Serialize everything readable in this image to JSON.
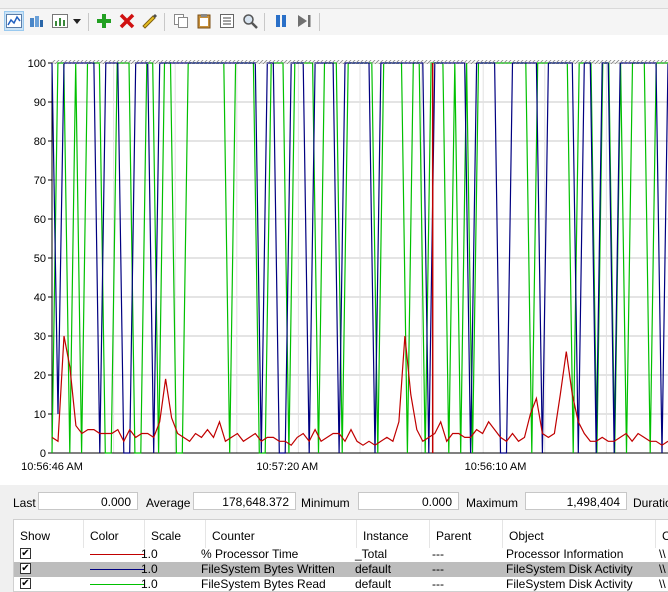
{
  "toolbar": {
    "buttons": [
      {
        "name": "view-graph-icon",
        "active": true
      },
      {
        "name": "view-histogram-icon"
      },
      {
        "name": "change-graph-type-icon"
      },
      {
        "name": "dropdown-arrow-icon"
      },
      {
        "name": "add-counter-icon"
      },
      {
        "name": "delete-counter-icon"
      },
      {
        "name": "highlight-icon"
      },
      {
        "name": "copy-properties-icon"
      },
      {
        "name": "paste-counter-list-icon"
      },
      {
        "name": "properties-icon"
      },
      {
        "name": "zoom-icon"
      },
      {
        "name": "freeze-display-icon"
      },
      {
        "name": "update-data-icon"
      }
    ]
  },
  "chart_data": {
    "type": "line",
    "ylim": [
      0,
      100
    ],
    "y_ticks": [
      "100",
      "90",
      "80",
      "70",
      "60",
      "50",
      "40",
      "30",
      "20",
      "10",
      "0"
    ],
    "x_labels": [
      "10:56:46 AM",
      "10:57:20 AM",
      "10:56:10 AM"
    ],
    "grid": true,
    "series": [
      {
        "name": "% Processor Time",
        "color": "#c00000",
        "values": [
          4,
          3,
          30,
          22,
          7,
          5,
          6,
          6,
          5,
          5,
          5,
          6,
          3,
          6,
          4,
          5,
          5,
          4,
          8,
          19,
          9,
          5,
          4,
          3,
          5,
          4,
          6,
          4,
          8,
          3,
          4,
          5,
          3,
          4,
          5,
          3,
          4,
          4,
          3,
          3,
          2,
          4,
          5,
          3,
          6,
          3,
          4,
          5,
          5,
          3,
          6,
          3,
          2,
          3,
          2,
          3,
          4,
          3,
          8,
          30,
          15,
          6,
          3,
          4,
          5,
          8,
          3,
          5,
          5,
          4,
          4,
          6,
          5,
          8,
          6,
          4,
          3,
          5,
          3,
          4,
          10,
          14,
          5,
          4,
          5,
          15,
          26,
          15,
          8,
          5,
          3,
          3,
          4,
          3,
          3,
          4,
          5,
          3,
          5,
          4,
          3,
          3,
          2,
          3
        ]
      },
      {
        "name": "FileSystem Bytes Written",
        "color": "#000080",
        "values": [
          100,
          10,
          100,
          100,
          100,
          100,
          100,
          100,
          0,
          100,
          100,
          100,
          0,
          0,
          100,
          100,
          100,
          0,
          100,
          100,
          100,
          100,
          100,
          100,
          100,
          100,
          100,
          100,
          100,
          100,
          100,
          100,
          100,
          100,
          100,
          0,
          100,
          100,
          0,
          0,
          100,
          100,
          100,
          0,
          100,
          100,
          100,
          100,
          0,
          100,
          100,
          100,
          100,
          100,
          0,
          100,
          100,
          100,
          100,
          100,
          100,
          100,
          100,
          0,
          100,
          100,
          100,
          100,
          100,
          100,
          0,
          100,
          100,
          100,
          100,
          0,
          0,
          100,
          100,
          100,
          100,
          100,
          0,
          100,
          100,
          100,
          100,
          100,
          0,
          100,
          100,
          0,
          100,
          100,
          0,
          100,
          100,
          100,
          100,
          100,
          100,
          100,
          0,
          100
        ]
      },
      {
        "name": "FileSystem Bytes Read",
        "color": "#00c000",
        "values": [
          0,
          100,
          100,
          0,
          100,
          0,
          100,
          100,
          100,
          0,
          0,
          100,
          100,
          100,
          0,
          0,
          100,
          100,
          0,
          100,
          100,
          0,
          0,
          100,
          100,
          100,
          100,
          100,
          100,
          100,
          0,
          100,
          100,
          100,
          100,
          0,
          0,
          100,
          100,
          100,
          0,
          100,
          100,
          100,
          100,
          0,
          100,
          100,
          100,
          0,
          100,
          100,
          100,
          100,
          100,
          0,
          100,
          100,
          100,
          100,
          0,
          100,
          100,
          0,
          100,
          100,
          100,
          0,
          100,
          0,
          100,
          0,
          100,
          100,
          100,
          100,
          100,
          100,
          100,
          100,
          100,
          0,
          100,
          100,
          100,
          100,
          100,
          100,
          0,
          100,
          100,
          100,
          0,
          100,
          100,
          0,
          100,
          0,
          100,
          100,
          100,
          0,
          100,
          100,
          100
        ]
      }
    ]
  },
  "stats": {
    "last_label": "Last",
    "last_value": "0.000",
    "average_label": "Average",
    "average_value": "178,648.372",
    "minimum_label": "Minimum",
    "minimum_value": "0.000",
    "maximum_label": "Maximum",
    "maximum_value": "1,498,404",
    "duration_label": "Duratio"
  },
  "legend": {
    "headers": [
      "Show",
      "Color",
      "Scale",
      "Counter",
      "Instance",
      "Parent",
      "Object",
      "C"
    ],
    "rows": [
      {
        "checked": "✔",
        "color": "#c00000",
        "scale": "1.0",
        "counter": "% Processor Time",
        "instance": "_Total",
        "parent": "---",
        "object": "Processor Information",
        "computer": "\\\\"
      },
      {
        "checked": "✔",
        "color": "#000080",
        "scale": "1.0",
        "counter": "FileSystem Bytes Written",
        "instance": "default",
        "parent": "---",
        "object": "FileSystem Disk Activity",
        "computer": "\\\\"
      },
      {
        "checked": "✔",
        "color": "#00c000",
        "scale": "1.0",
        "counter": "FileSystem Bytes Read",
        "instance": "default",
        "parent": "---",
        "object": "FileSystem Disk Activity",
        "computer": "\\\\"
      }
    ]
  }
}
